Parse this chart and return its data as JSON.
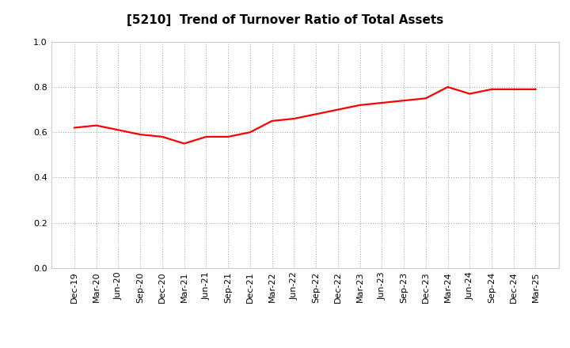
{
  "title": "[5210]  Trend of Turnover Ratio of Total Assets",
  "x_labels": [
    "Dec-19",
    "Mar-20",
    "Jun-20",
    "Sep-20",
    "Dec-20",
    "Mar-21",
    "Jun-21",
    "Sep-21",
    "Dec-21",
    "Mar-22",
    "Jun-22",
    "Sep-22",
    "Dec-22",
    "Mar-23",
    "Jun-23",
    "Sep-23",
    "Dec-23",
    "Mar-24",
    "Jun-24",
    "Sep-24",
    "Dec-24",
    "Mar-25"
  ],
  "y_values": [
    0.62,
    0.63,
    0.61,
    0.59,
    0.58,
    0.55,
    0.58,
    0.58,
    0.6,
    0.65,
    0.66,
    0.68,
    0.7,
    0.72,
    0.73,
    0.74,
    0.75,
    0.8,
    0.77,
    0.79,
    0.79,
    0.79
  ],
  "line_color": "#FF0000",
  "line_width": 1.6,
  "ylim": [
    0.0,
    1.0
  ],
  "yticks": [
    0.0,
    0.2,
    0.4,
    0.6,
    0.8,
    1.0
  ],
  "background_color": "#FFFFFF",
  "grid_color": "#999999",
  "title_fontsize": 11,
  "tick_fontsize": 8,
  "fill": false
}
